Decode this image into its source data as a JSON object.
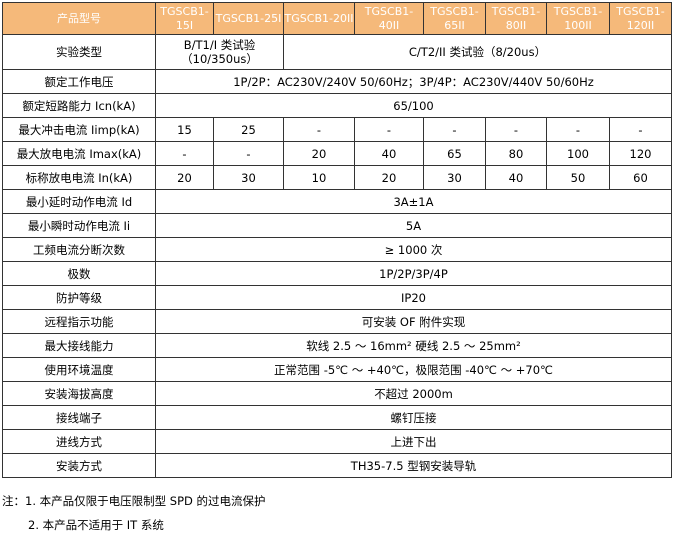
{
  "header": {
    "label": "产品型号",
    "models": [
      "TGSCB1-15I",
      "TGSCB1-25I",
      "TGSCB1-20II",
      "TGSCB1-40II",
      "TGSCB1-65II",
      "TGSCB1-80II",
      "TGSCB1-100II",
      "TGSCB1-120II"
    ]
  },
  "test_type": {
    "label": "实验类型",
    "type1_line1": "B/T1/I 类试验",
    "type1_line2": "（10/350us）",
    "type2": "C/T2/II 类试验（8/20us）"
  },
  "rows_span": [
    {
      "label": "额定工作电压",
      "value": "1P/2P：AC230V/240V 50/60Hz；3P/4P：AC230V/440V 50/60Hz"
    },
    {
      "label": "额定短路能力 Icn(kA)",
      "value": "65/100"
    }
  ],
  "rows_cells": [
    {
      "label": "最大冲击电流 Iimp(kA)",
      "values": [
        "15",
        "25",
        "-",
        "-",
        "-",
        "-",
        "-",
        "-"
      ]
    },
    {
      "label": "最大放电电流 Imax(kA)",
      "values": [
        "-",
        "-",
        "20",
        "40",
        "65",
        "80",
        "100",
        "120"
      ]
    },
    {
      "label": "标称放电电流 In(kA)",
      "values": [
        "20",
        "30",
        "10",
        "20",
        "30",
        "40",
        "50",
        "60"
      ]
    }
  ],
  "rows_span2": [
    {
      "label": "最小延时动作电流 Id",
      "value": "3A±1A"
    },
    {
      "label": "最小瞬时动作电流 Ii",
      "value": "5A"
    },
    {
      "label": "工频电流分断次数",
      "value": "≥ 1000 次"
    },
    {
      "label": "极数",
      "value": "1P/2P/3P/4P"
    },
    {
      "label": "防护等级",
      "value": "IP20"
    },
    {
      "label": "远程指示功能",
      "value": "可安装 OF 附件实现"
    },
    {
      "label": "最大接线能力",
      "value": "软线 2.5 ～ 16mm² 硬线 2.5 ～ 25mm²"
    },
    {
      "label": "使用环境温度",
      "value": "正常范围 -5℃ ～ +40℃，极限范围 -40℃ ～ +70℃"
    },
    {
      "label": "安装海拔高度",
      "value": "不超过 2000m"
    },
    {
      "label": "接线端子",
      "value": "螺钉压接"
    },
    {
      "label": "进线方式",
      "value": "上进下出"
    },
    {
      "label": "安装方式",
      "value": "TH35-7.5 型钢安装导轨"
    }
  ],
  "notes": [
    "注：1. 本产品仅限于电压限制型 SPD 的过电流保护",
    "2. 本产品不适用于 IT 系统"
  ],
  "colors": {
    "header_bg": "#f5b97a",
    "header_text": "#ffffff",
    "border": "#333333"
  }
}
